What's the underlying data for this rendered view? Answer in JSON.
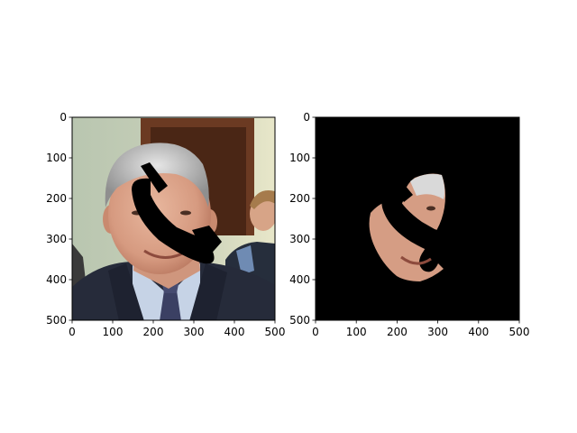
{
  "chart_data": [
    {
      "type": "image",
      "content": "photo: man with grey hair in dark suit and striped tie; black telephone-handset shape drawn over face",
      "mask_color": "#000000",
      "xlim": [
        0,
        500
      ],
      "ylim": [
        500,
        0
      ],
      "x_ticks": [
        0,
        100,
        200,
        300,
        400,
        500
      ],
      "y_ticks": [
        0,
        100,
        200,
        300,
        400,
        500
      ],
      "x_tick_labels": [
        "0",
        "100",
        "200",
        "300",
        "400",
        "500"
      ],
      "y_tick_labels": [
        "0",
        "100",
        "200",
        "300",
        "400",
        "500"
      ]
    },
    {
      "type": "image",
      "content": "same photo with everything masked black except a face region; the handset shape remains black",
      "mask_color": "#000000",
      "xlim": [
        0,
        500
      ],
      "ylim": [
        500,
        0
      ],
      "x_ticks": [
        0,
        100,
        200,
        300,
        400,
        500
      ],
      "y_ticks": [
        0,
        100,
        200,
        300,
        400,
        500
      ],
      "x_tick_labels": [
        "0",
        "100",
        "200",
        "300",
        "400",
        "500"
      ],
      "y_tick_labels": [
        "0",
        "100",
        "200",
        "300",
        "400",
        "500"
      ]
    }
  ]
}
